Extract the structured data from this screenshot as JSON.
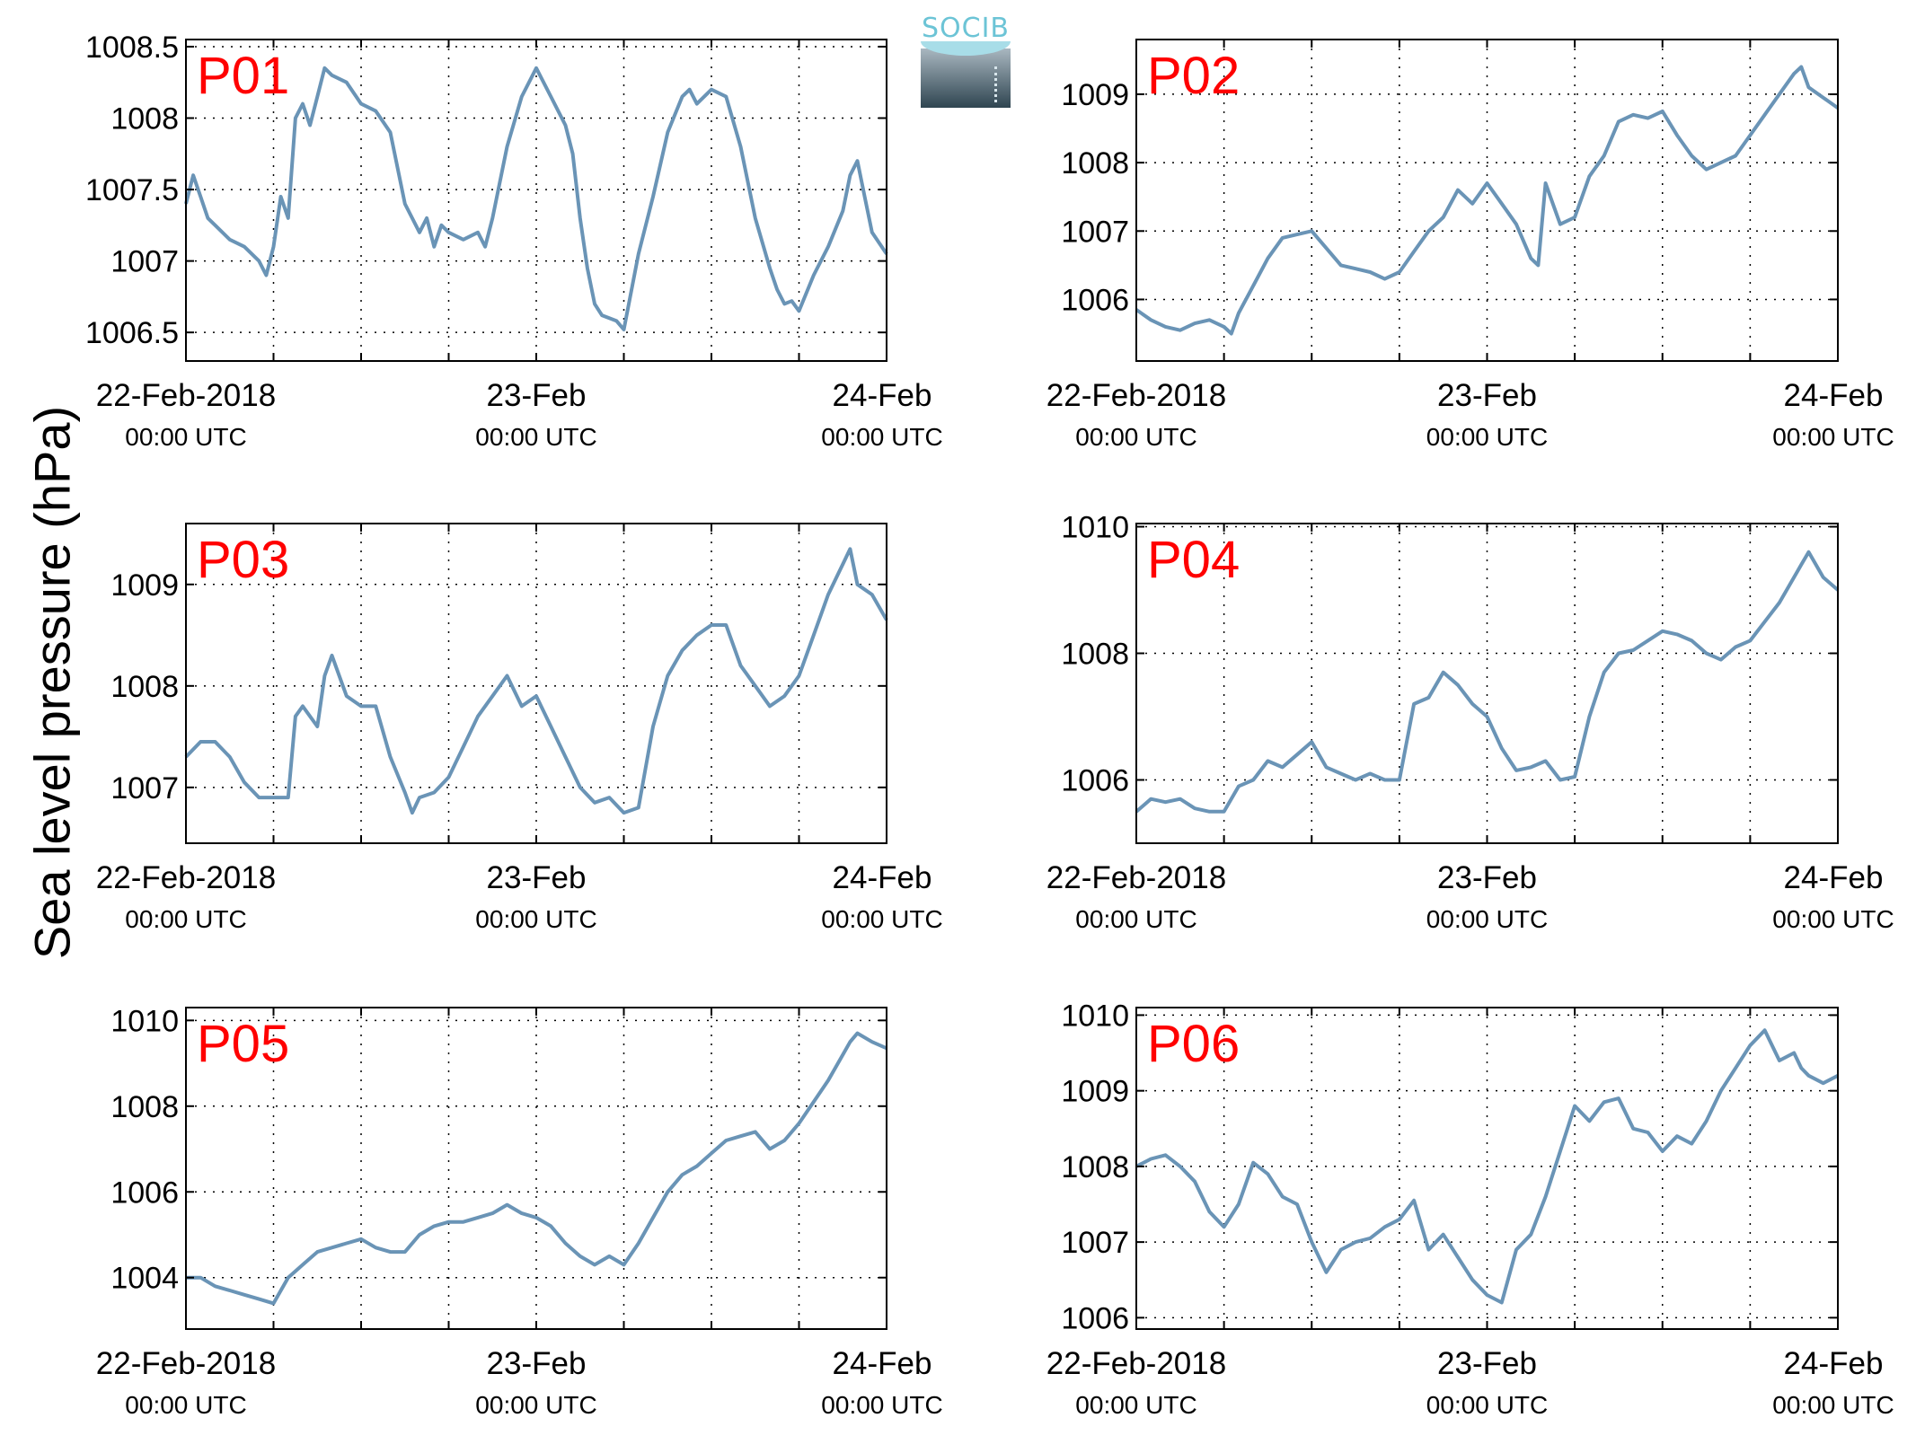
{
  "figure": {
    "ylabel": "Sea level pressure (hPa)",
    "logo_text": "SOCIB",
    "line_color": "#6a94b6",
    "label_color": "#ff0000"
  },
  "chart_data": [
    {
      "type": "line",
      "title": "P01",
      "x_range_hours": [
        0,
        48
      ],
      "xticks": [
        {
          "h": 0,
          "date": "22-Feb-2018",
          "time": "00:00 UTC"
        },
        {
          "h": 24,
          "date": "23-Feb",
          "time": "00:00 UTC"
        },
        {
          "h": 48,
          "date": "24-Feb",
          "time": "00:00 UTC"
        }
      ],
      "ylim": [
        1006.3,
        1008.55
      ],
      "yticks": [
        1006.5,
        1007,
        1007.5,
        1008,
        1008.5
      ],
      "ytick_labels": [
        "1006.5",
        "1007",
        "1007.5",
        "1008",
        "1008.5"
      ],
      "grid": true,
      "series": [
        {
          "x": [
            0,
            0.5,
            1,
            1.5,
            2,
            3,
            4,
            5,
            5.5,
            6,
            6.5,
            7,
            7.5,
            8,
            8.5,
            9,
            9.5,
            10,
            11,
            12,
            13,
            14,
            15,
            15.5,
            16,
            16.5,
            17,
            17.5,
            18,
            19,
            20,
            20.5,
            21,
            22,
            23,
            24,
            25,
            26,
            26.5,
            27,
            27.5,
            28,
            28.5,
            29,
            29.5,
            30,
            31,
            32,
            33,
            34,
            34.5,
            35,
            36,
            37,
            38,
            39,
            40,
            40.5,
            41,
            41.5,
            42,
            43,
            44,
            45,
            45.5,
            46,
            46.5,
            47,
            48
          ],
          "y": [
            1007.4,
            1007.6,
            1007.45,
            1007.3,
            1007.25,
            1007.15,
            1007.1,
            1007.0,
            1006.9,
            1007.1,
            1007.45,
            1007.3,
            1008.0,
            1008.1,
            1007.95,
            1008.15,
            1008.35,
            1008.3,
            1008.25,
            1008.1,
            1008.05,
            1007.9,
            1007.4,
            1007.3,
            1007.2,
            1007.3,
            1007.1,
            1007.25,
            1007.2,
            1007.15,
            1007.2,
            1007.1,
            1007.3,
            1007.8,
            1008.15,
            1008.35,
            1008.15,
            1007.95,
            1007.75,
            1007.3,
            1006.95,
            1006.7,
            1006.62,
            1006.6,
            1006.58,
            1006.52,
            1007.05,
            1007.45,
            1007.9,
            1008.15,
            1008.2,
            1008.1,
            1008.2,
            1008.15,
            1007.8,
            1007.3,
            1006.95,
            1006.8,
            1006.7,
            1006.72,
            1006.65,
            1006.9,
            1007.1,
            1007.35,
            1007.6,
            1007.7,
            1007.45,
            1007.2,
            1007.05
          ]
        }
      ]
    },
    {
      "type": "line",
      "title": "P02",
      "x_range_hours": [
        0,
        48
      ],
      "xticks": [
        {
          "h": 0,
          "date": "22-Feb-2018",
          "time": "00:00 UTC"
        },
        {
          "h": 24,
          "date": "23-Feb",
          "time": "00:00 UTC"
        },
        {
          "h": 48,
          "date": "24-Feb",
          "time": "00:00 UTC"
        }
      ],
      "ylim": [
        1005.1,
        1009.8
      ],
      "yticks": [
        1006,
        1007,
        1008,
        1009
      ],
      "ytick_labels": [
        "1006",
        "1007",
        "1008",
        "1009"
      ],
      "grid": true,
      "series": [
        {
          "x": [
            0,
            1,
            2,
            3,
            4,
            5,
            6,
            6.5,
            7,
            8,
            9,
            10,
            11,
            12,
            13,
            14,
            15,
            16,
            17,
            18,
            19,
            20,
            21,
            22,
            23,
            24,
            25,
            26,
            27,
            27.5,
            28,
            28.5,
            29,
            30,
            31,
            32,
            33,
            34,
            35,
            36,
            37,
            38,
            39,
            40,
            41,
            42,
            43,
            44,
            45,
            45.5,
            46,
            47,
            48
          ],
          "y": [
            1005.85,
            1005.7,
            1005.6,
            1005.55,
            1005.65,
            1005.7,
            1005.6,
            1005.5,
            1005.8,
            1006.2,
            1006.6,
            1006.9,
            1006.95,
            1007.0,
            1006.75,
            1006.5,
            1006.45,
            1006.4,
            1006.3,
            1006.4,
            1006.7,
            1007.0,
            1007.2,
            1007.6,
            1007.4,
            1007.7,
            1007.4,
            1007.1,
            1006.6,
            1006.5,
            1007.7,
            1007.4,
            1007.1,
            1007.2,
            1007.8,
            1008.1,
            1008.6,
            1008.7,
            1008.65,
            1008.75,
            1008.4,
            1008.1,
            1007.9,
            1008.0,
            1008.1,
            1008.4,
            1008.7,
            1009.0,
            1009.3,
            1009.4,
            1009.1,
            1008.95,
            1008.8
          ]
        }
      ]
    },
    {
      "type": "line",
      "title": "P03",
      "x_range_hours": [
        0,
        48
      ],
      "xticks": [
        {
          "h": 0,
          "date": "22-Feb-2018",
          "time": "00:00 UTC"
        },
        {
          "h": 24,
          "date": "23-Feb",
          "time": "00:00 UTC"
        },
        {
          "h": 48,
          "date": "24-Feb",
          "time": "00:00 UTC"
        }
      ],
      "ylim": [
        1006.45,
        1009.6
      ],
      "yticks": [
        1007,
        1008,
        1009
      ],
      "ytick_labels": [
        "1007",
        "1008",
        "1009"
      ],
      "grid": true,
      "series": [
        {
          "x": [
            0,
            1,
            2,
            3,
            4,
            5,
            6,
            7,
            7.5,
            8,
            9,
            9.5,
            10,
            11,
            12,
            13,
            14,
            15,
            15.5,
            16,
            17,
            18,
            19,
            20,
            21,
            22,
            23,
            24,
            25,
            26,
            27,
            28,
            29,
            30,
            31,
            32,
            33,
            34,
            35,
            36,
            37,
            38,
            39,
            40,
            41,
            42,
            43,
            44,
            45,
            45.5,
            46,
            47,
            48
          ],
          "y": [
            1007.3,
            1007.45,
            1007.45,
            1007.3,
            1007.05,
            1006.9,
            1006.9,
            1006.9,
            1007.7,
            1007.8,
            1007.6,
            1008.1,
            1008.3,
            1007.9,
            1007.8,
            1007.8,
            1007.3,
            1006.95,
            1006.75,
            1006.9,
            1006.95,
            1007.1,
            1007.4,
            1007.7,
            1007.9,
            1008.1,
            1007.8,
            1007.9,
            1007.6,
            1007.3,
            1007.0,
            1006.85,
            1006.9,
            1006.75,
            1006.8,
            1007.6,
            1008.1,
            1008.35,
            1008.5,
            1008.6,
            1008.6,
            1008.2,
            1008.0,
            1007.8,
            1007.9,
            1008.1,
            1008.5,
            1008.9,
            1009.2,
            1009.35,
            1009.0,
            1008.9,
            1008.65
          ]
        }
      ]
    },
    {
      "type": "line",
      "title": "P04",
      "x_range_hours": [
        0,
        48
      ],
      "xticks": [
        {
          "h": 0,
          "date": "22-Feb-2018",
          "time": "00:00 UTC"
        },
        {
          "h": 24,
          "date": "23-Feb",
          "time": "00:00 UTC"
        },
        {
          "h": 48,
          "date": "24-Feb",
          "time": "00:00 UTC"
        }
      ],
      "ylim": [
        1005.0,
        1010.05
      ],
      "yticks": [
        1006,
        1008,
        1010
      ],
      "ytick_labels": [
        "1006",
        "1008",
        "1010"
      ],
      "grid": true,
      "series": [
        {
          "x": [
            0,
            1,
            2,
            3,
            4,
            5,
            6,
            7,
            8,
            9,
            10,
            11,
            12,
            13,
            14,
            15,
            16,
            17,
            18,
            19,
            20,
            21,
            22,
            23,
            24,
            25,
            26,
            27,
            28,
            29,
            30,
            31,
            32,
            33,
            34,
            35,
            36,
            37,
            38,
            39,
            40,
            41,
            42,
            43,
            44,
            45,
            45.5,
            46,
            47,
            48
          ],
          "y": [
            1005.5,
            1005.7,
            1005.65,
            1005.7,
            1005.55,
            1005.5,
            1005.5,
            1005.9,
            1006.0,
            1006.3,
            1006.2,
            1006.4,
            1006.6,
            1006.2,
            1006.1,
            1006.0,
            1006.1,
            1006.0,
            1006.0,
            1007.2,
            1007.3,
            1007.7,
            1007.5,
            1007.2,
            1007.0,
            1006.5,
            1006.15,
            1006.2,
            1006.3,
            1006.0,
            1006.05,
            1007.0,
            1007.7,
            1008.0,
            1008.05,
            1008.2,
            1008.35,
            1008.3,
            1008.2,
            1008.0,
            1007.9,
            1008.1,
            1008.2,
            1008.5,
            1008.8,
            1009.2,
            1009.4,
            1009.6,
            1009.2,
            1009.0
          ]
        }
      ]
    },
    {
      "type": "line",
      "title": "P05",
      "x_range_hours": [
        0,
        48
      ],
      "xticks": [
        {
          "h": 0,
          "date": "22-Feb-2018",
          "time": "00:00 UTC"
        },
        {
          "h": 24,
          "date": "23-Feb",
          "time": "00:00 UTC"
        },
        {
          "h": 48,
          "date": "24-Feb",
          "time": "00:00 UTC"
        }
      ],
      "ylim": [
        1002.8,
        1010.3
      ],
      "yticks": [
        1004,
        1006,
        1008,
        1010
      ],
      "ytick_labels": [
        "1004",
        "1006",
        "1008",
        "1010"
      ],
      "grid": true,
      "series": [
        {
          "x": [
            0,
            1,
            2,
            3,
            4,
            5,
            6,
            7,
            8,
            9,
            10,
            11,
            12,
            13,
            14,
            15,
            16,
            17,
            18,
            19,
            20,
            21,
            22,
            23,
            24,
            25,
            26,
            27,
            28,
            29,
            30,
            31,
            32,
            33,
            34,
            35,
            36,
            37,
            38,
            39,
            40,
            41,
            42,
            43,
            44,
            45,
            45.5,
            46,
            47,
            48
          ],
          "y": [
            1004.0,
            1004.0,
            1003.8,
            1003.7,
            1003.6,
            1003.5,
            1003.4,
            1004.0,
            1004.3,
            1004.6,
            1004.7,
            1004.8,
            1004.9,
            1004.7,
            1004.6,
            1004.6,
            1005.0,
            1005.2,
            1005.3,
            1005.3,
            1005.4,
            1005.5,
            1005.7,
            1005.5,
            1005.4,
            1005.2,
            1004.8,
            1004.5,
            1004.3,
            1004.5,
            1004.3,
            1004.8,
            1005.4,
            1006.0,
            1006.4,
            1006.6,
            1006.9,
            1007.2,
            1007.3,
            1007.4,
            1007.0,
            1007.2,
            1007.6,
            1008.1,
            1008.6,
            1009.2,
            1009.5,
            1009.7,
            1009.5,
            1009.35
          ]
        }
      ]
    },
    {
      "type": "line",
      "title": "P06",
      "x_range_hours": [
        0,
        48
      ],
      "xticks": [
        {
          "h": 0,
          "date": "22-Feb-2018",
          "time": "00:00 UTC"
        },
        {
          "h": 24,
          "date": "23-Feb",
          "time": "00:00 UTC"
        },
        {
          "h": 48,
          "date": "24-Feb",
          "time": "00:00 UTC"
        }
      ],
      "ylim": [
        1005.85,
        1010.1
      ],
      "yticks": [
        1006,
        1007,
        1008,
        1009,
        1010
      ],
      "ytick_labels": [
        "1006",
        "1007",
        "1008",
        "1009",
        "1010"
      ],
      "grid": true,
      "series": [
        {
          "x": [
            0,
            1,
            2,
            3,
            4,
            5,
            6,
            7,
            8,
            9,
            10,
            11,
            12,
            13,
            14,
            15,
            16,
            17,
            18,
            19,
            20,
            21,
            22,
            23,
            24,
            25,
            26,
            27,
            28,
            29,
            30,
            31,
            32,
            33,
            34,
            35,
            36,
            37,
            38,
            39,
            40,
            41,
            42,
            43,
            44,
            45,
            45.5,
            46,
            47,
            48
          ],
          "y": [
            1008.0,
            1008.1,
            1008.15,
            1008.0,
            1007.8,
            1007.4,
            1007.2,
            1007.5,
            1008.05,
            1007.9,
            1007.6,
            1007.5,
            1007.0,
            1006.6,
            1006.9,
            1007.0,
            1007.05,
            1007.2,
            1007.3,
            1007.55,
            1006.9,
            1007.1,
            1006.8,
            1006.5,
            1006.3,
            1006.2,
            1006.9,
            1007.1,
            1007.6,
            1008.2,
            1008.8,
            1008.6,
            1008.85,
            1008.9,
            1008.5,
            1008.45,
            1008.2,
            1008.4,
            1008.3,
            1008.6,
            1009.0,
            1009.3,
            1009.6,
            1009.8,
            1009.4,
            1009.5,
            1009.3,
            1009.2,
            1009.1,
            1009.2
          ]
        }
      ]
    }
  ]
}
